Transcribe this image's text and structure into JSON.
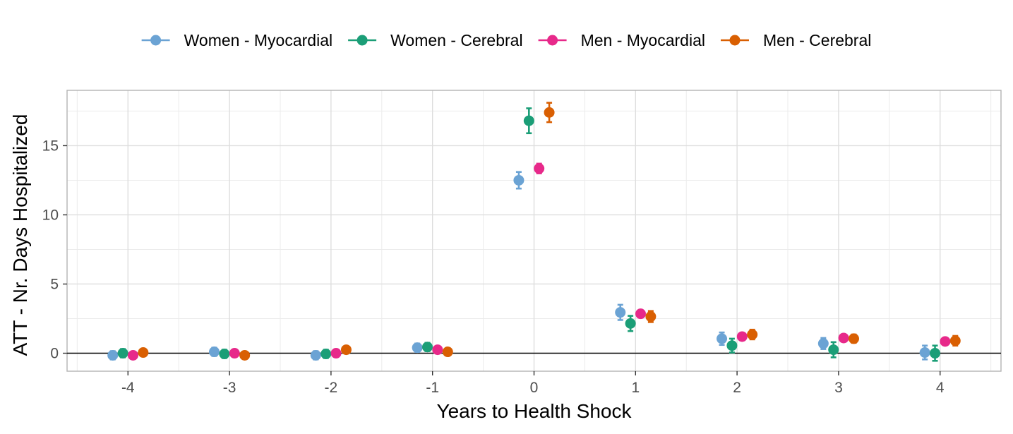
{
  "chart_data": {
    "type": "scatter",
    "title": "",
    "xlabel": "Years to Health Shock",
    "ylabel": "ATT - Nr. Days Hospitalized",
    "xlim": [
      -4.6,
      4.6
    ],
    "ylim": [
      -1.3,
      19.0
    ],
    "x_ticks": [
      -4,
      -3,
      -2,
      -1,
      0,
      1,
      2,
      3,
      4
    ],
    "x_tick_labels": [
      "-4",
      "-3",
      "-2",
      "-1",
      "0",
      "1",
      "2",
      "3",
      "4"
    ],
    "y_ticks": [
      0,
      5,
      10,
      15
    ],
    "y_tick_labels": [
      "0",
      "5",
      "10",
      "15"
    ],
    "reference_line_y": 0,
    "legend_position": "top",
    "grid": true,
    "series": [
      {
        "name": "Women - Myocardial",
        "color": "#6BA3D4",
        "offset": -0.15,
        "x": [
          -4,
          -3,
          -2,
          -1,
          0,
          1,
          2,
          3,
          4
        ],
        "values": [
          -0.15,
          0.1,
          -0.15,
          0.4,
          12.5,
          2.95,
          1.05,
          0.7,
          0.05
        ],
        "lower": [
          -0.45,
          -0.2,
          -0.45,
          0.1,
          11.9,
          2.4,
          0.6,
          0.3,
          -0.45
        ],
        "upper": [
          0.15,
          0.4,
          0.15,
          0.7,
          13.1,
          3.5,
          1.5,
          1.1,
          0.55
        ]
      },
      {
        "name": "Women - Cerebral",
        "color": "#1B9E77",
        "offset": -0.05,
        "x": [
          -4,
          -3,
          -2,
          -1,
          0,
          1,
          2,
          3,
          4
        ],
        "values": [
          0.0,
          -0.05,
          -0.05,
          0.45,
          16.8,
          2.15,
          0.55,
          0.25,
          0.0
        ],
        "lower": [
          -0.3,
          -0.35,
          -0.35,
          0.15,
          15.9,
          1.6,
          0.05,
          -0.3,
          -0.55
        ],
        "upper": [
          0.3,
          0.25,
          0.25,
          0.75,
          17.7,
          2.7,
          1.05,
          0.8,
          0.55
        ]
      },
      {
        "name": "Men - Myocardial",
        "color": "#E7298A",
        "offset": 0.05,
        "x": [
          -4,
          -3,
          -2,
          -1,
          0,
          1,
          2,
          3,
          4
        ],
        "values": [
          -0.15,
          0.0,
          0.0,
          0.25,
          13.35,
          2.85,
          1.2,
          1.1,
          0.85
        ],
        "lower": [
          -0.35,
          -0.2,
          -0.2,
          0.05,
          13.0,
          2.6,
          0.95,
          0.85,
          0.6
        ],
        "upper": [
          0.05,
          0.2,
          0.2,
          0.45,
          13.7,
          3.1,
          1.45,
          1.35,
          1.1
        ]
      },
      {
        "name": "Men - Cerebral",
        "color": "#D95F02",
        "offset": 0.15,
        "x": [
          -4,
          -3,
          -2,
          -1,
          0,
          1,
          2,
          3,
          4
        ],
        "values": [
          0.05,
          -0.15,
          0.25,
          0.1,
          17.4,
          2.65,
          1.35,
          1.05,
          0.9
        ],
        "lower": [
          -0.15,
          -0.35,
          0.05,
          -0.1,
          16.7,
          2.25,
          1.0,
          0.75,
          0.55
        ],
        "upper": [
          0.25,
          0.05,
          0.45,
          0.3,
          18.1,
          3.05,
          1.7,
          1.35,
          1.25
        ]
      }
    ]
  }
}
